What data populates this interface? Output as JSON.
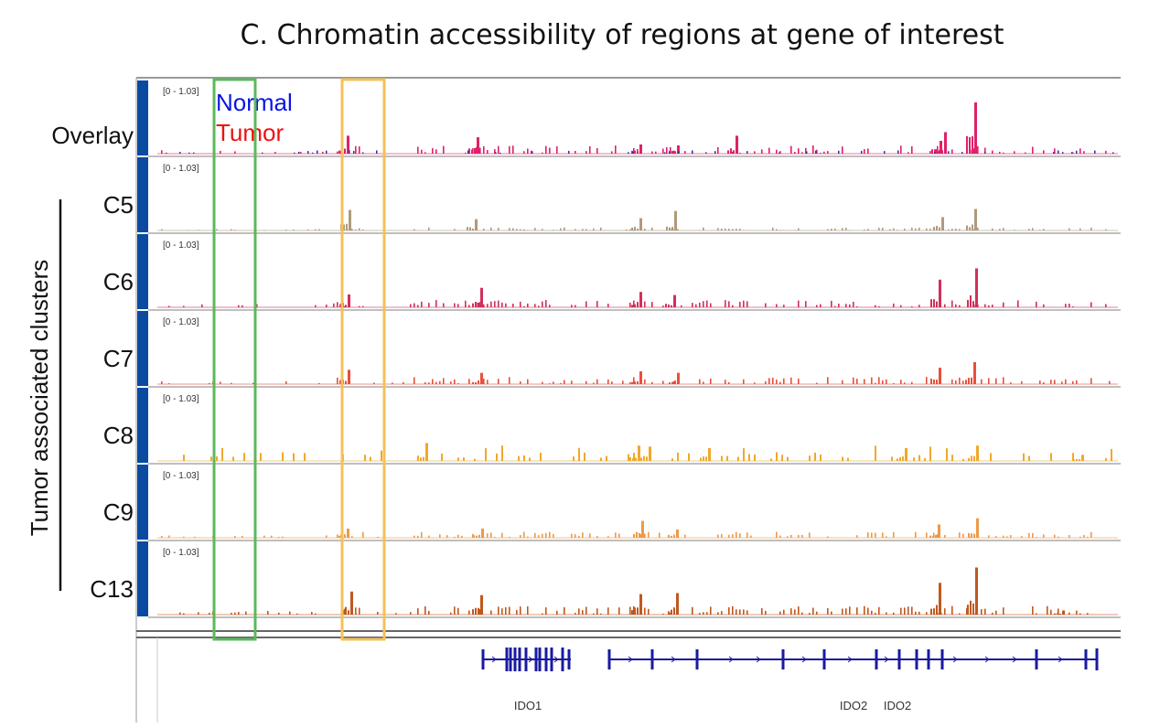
{
  "chart_data": {
    "type": "bar",
    "title": "C. Chromatin accessibility of regions at gene of interest",
    "y_axis_label": "Tumor associated clusters",
    "range_label": "[0 - 1.03]",
    "ylim": [
      0,
      1.03
    ],
    "legend": [
      {
        "label": "Normal",
        "color": "#0a14e6"
      },
      {
        "label": "Tumor",
        "color": "#ee1111"
      }
    ],
    "tracks": [
      {
        "name": "Overlay",
        "color": "#e0206a",
        "color2": "#3a2aa8",
        "scale": 1.0,
        "peaks": [
          [
            380,
            0.35
          ],
          [
            522,
            0.32
          ],
          [
            700,
            0.18
          ],
          [
            741,
            0.16
          ],
          [
            805,
            0.35
          ],
          [
            1028,
            0.25
          ],
          [
            1033,
            0.42
          ],
          [
            1066,
            1.0
          ]
        ]
      },
      {
        "name": "C5",
        "color": "#b09a7c",
        "scale": 0.38,
        "peaks": [
          [
            382,
            0.4
          ],
          [
            520,
            0.22
          ],
          [
            700,
            0.24
          ],
          [
            738,
            0.38
          ],
          [
            1030,
            0.26
          ],
          [
            1066,
            0.42
          ]
        ]
      },
      {
        "name": "C6",
        "color": "#d0305a",
        "scale": 0.9,
        "peaks": [
          [
            381,
            0.25
          ],
          [
            526,
            0.38
          ],
          [
            700,
            0.3
          ],
          [
            737,
            0.24
          ],
          [
            1027,
            0.54
          ],
          [
            1067,
            0.76
          ]
        ]
      },
      {
        "name": "C7",
        "color": "#e84f3c",
        "scale": 0.88,
        "peaks": [
          [
            381,
            0.28
          ],
          [
            526,
            0.22
          ],
          [
            700,
            0.25
          ],
          [
            741,
            0.22
          ],
          [
            1027,
            0.32
          ],
          [
            1065,
            0.43
          ]
        ]
      },
      {
        "name": "C8",
        "color": "#f0a82c",
        "scale": 1.0,
        "peaks": [
          [
            466,
            0.35
          ],
          [
            698,
            0.3
          ],
          [
            710,
            0.28
          ],
          [
            775,
            0.25
          ],
          [
            990,
            0.25
          ],
          [
            1068,
            0.3
          ],
          [
            1183,
            0.12
          ]
        ]
      },
      {
        "name": "C9",
        "color": "#ec9a48",
        "scale": 0.72,
        "peaks": [
          [
            380,
            0.18
          ],
          [
            527,
            0.18
          ],
          [
            702,
            0.33
          ],
          [
            740,
            0.16
          ],
          [
            1026,
            0.26
          ],
          [
            1068,
            0.38
          ]
        ]
      },
      {
        "name": "C13",
        "color": "#c0581e",
        "scale": 1.05,
        "peaks": [
          [
            384,
            0.45
          ],
          [
            526,
            0.38
          ],
          [
            700,
            0.4
          ],
          [
            740,
            0.42
          ],
          [
            1027,
            0.62
          ],
          [
            1067,
            0.92
          ],
          [
            1162,
            0.08
          ]
        ]
      }
    ],
    "genes": [
      "IDO1",
      "IDO2",
      "IDO2"
    ],
    "highlight_colors": {
      "green": "#5cb85c",
      "orange": "#f4c05a"
    }
  }
}
